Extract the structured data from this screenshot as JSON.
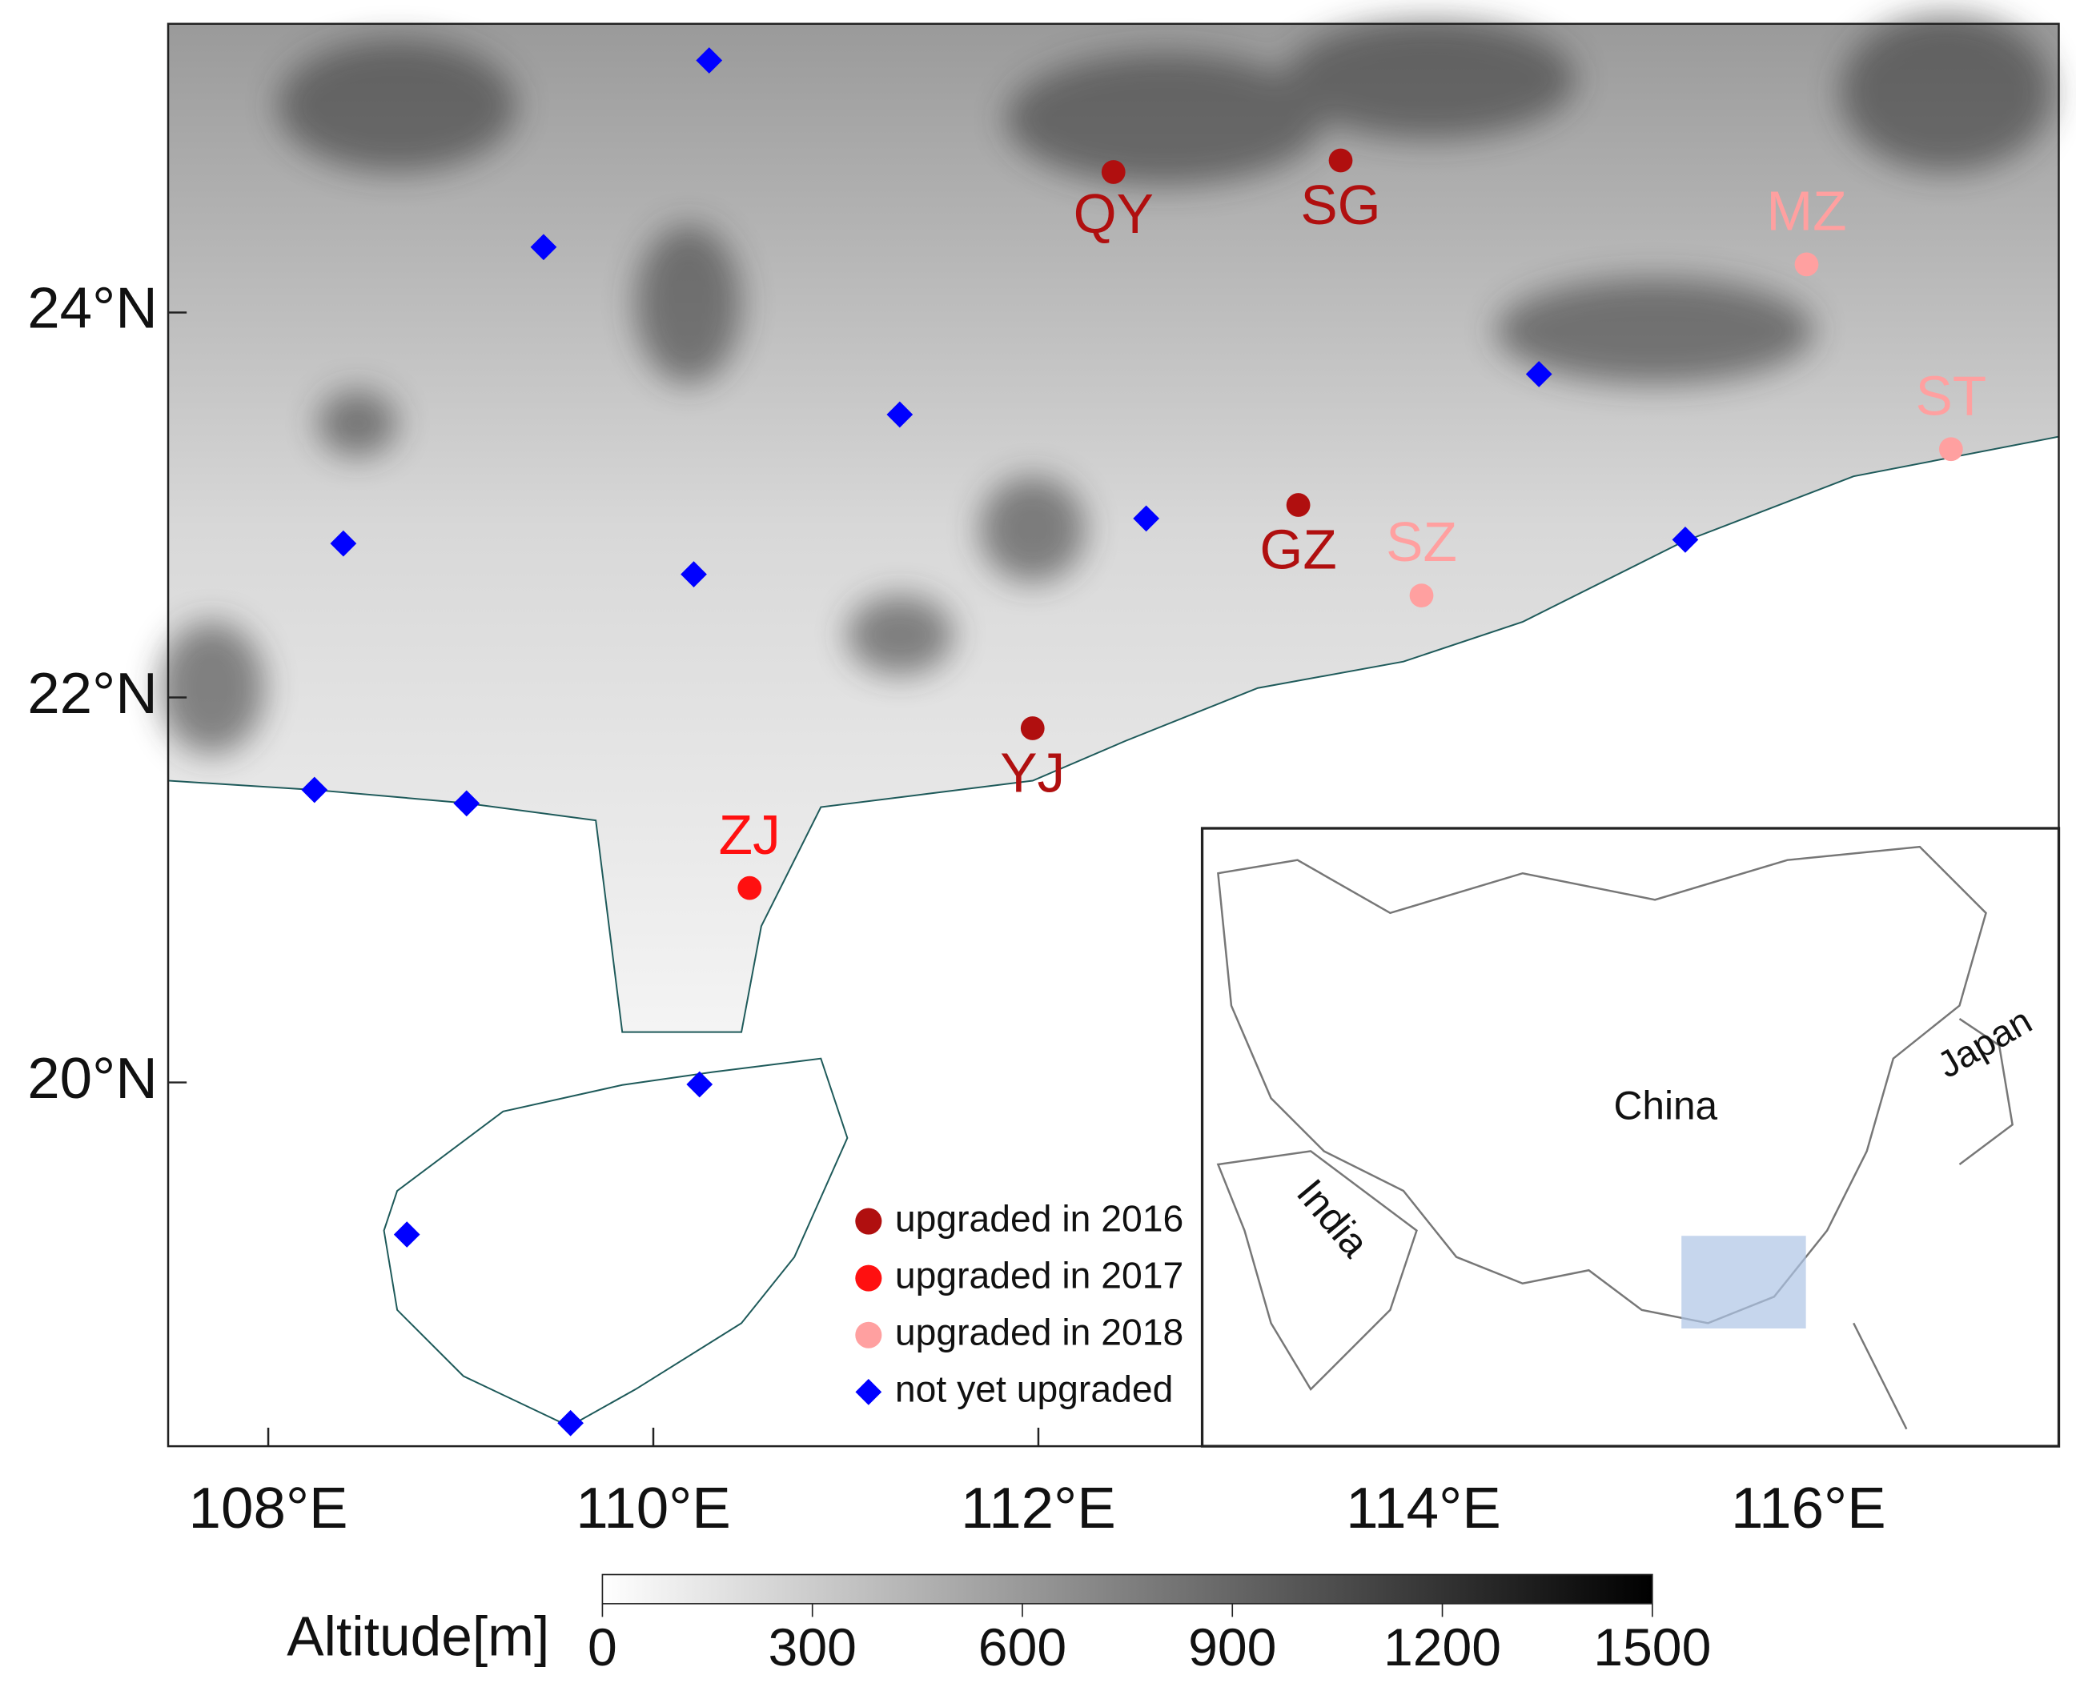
{
  "map": {
    "xlim": [
      107.48,
      117.3
    ],
    "ylim": [
      18.11,
      25.5
    ],
    "xticks": [
      {
        "value": 108,
        "label": "108°E"
      },
      {
        "value": 110,
        "label": "110°E"
      },
      {
        "value": 112,
        "label": "112°E"
      },
      {
        "value": 114,
        "label": "114°E"
      },
      {
        "value": 116,
        "label": "116°E"
      }
    ],
    "yticks": [
      {
        "value": 20,
        "label": "20°N"
      },
      {
        "value": 22,
        "label": "22°N"
      },
      {
        "value": 24,
        "label": "24°N"
      }
    ],
    "legend": [
      {
        "label": "upgraded in 2016",
        "color": "#b00f0f"
      },
      {
        "label": "upgraded in 2017",
        "color": "#ff1010"
      },
      {
        "label": "upgraded in 2018",
        "color": "#ffa0a0"
      },
      {
        "label": "not yet upgraded",
        "color": "#0000ff"
      }
    ],
    "stations": [
      {
        "label": "QY",
        "lon": 112.39,
        "lat": 24.73,
        "group": 0
      },
      {
        "label": "SG",
        "lon": 113.57,
        "lat": 24.79,
        "group": 0
      },
      {
        "label": "MZ",
        "lon": 115.99,
        "lat": 24.25,
        "group": 2
      },
      {
        "label": "ST",
        "lon": 116.74,
        "lat": 23.29,
        "group": 2
      },
      {
        "label": "GZ",
        "lon": 113.35,
        "lat": 23.0,
        "group": 0
      },
      {
        "label": "SZ",
        "lon": 113.99,
        "lat": 22.53,
        "group": 2
      },
      {
        "label": "YJ",
        "lon": 111.97,
        "lat": 21.84,
        "group": 0
      },
      {
        "label": "ZJ",
        "lon": 110.5,
        "lat": 21.01,
        "group": 1
      }
    ],
    "sites": [
      {
        "lon": 110.29,
        "lat": 25.31
      },
      {
        "lon": 109.43,
        "lat": 24.34
      },
      {
        "lon": 111.28,
        "lat": 23.47
      },
      {
        "lon": 114.6,
        "lat": 23.68
      },
      {
        "lon": 108.39,
        "lat": 22.8
      },
      {
        "lon": 110.21,
        "lat": 22.64
      },
      {
        "lon": 112.56,
        "lat": 22.93
      },
      {
        "lon": 115.36,
        "lat": 22.82
      },
      {
        "lon": 108.24,
        "lat": 21.52
      },
      {
        "lon": 109.03,
        "lat": 21.45
      },
      {
        "lon": 110.24,
        "lat": 19.99
      },
      {
        "lon": 108.72,
        "lat": 19.21
      },
      {
        "lon": 109.57,
        "lat": 18.23
      }
    ],
    "colorbar": {
      "label": "Altitude[m]",
      "lim": [
        0,
        1500
      ],
      "ticks": [
        0,
        300,
        600,
        900,
        1200,
        1500
      ]
    },
    "inset": {
      "labels": [
        "China",
        "India",
        "Japan"
      ]
    }
  }
}
